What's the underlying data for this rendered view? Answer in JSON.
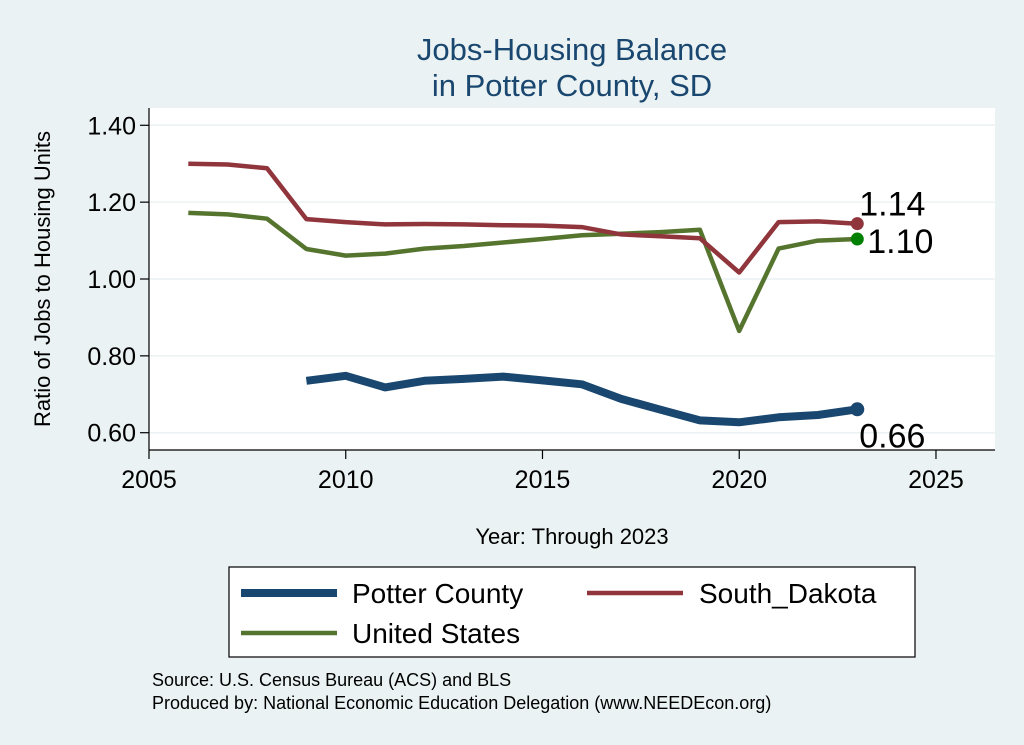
{
  "chart_data": {
    "type": "line",
    "title": [
      "Jobs-Housing Balance",
      "in Potter County, SD"
    ],
    "xlabel": "Year: Through 2023",
    "ylabel": "Ratio of Jobs to Housing Units",
    "xlim": [
      2005,
      2026.5
    ],
    "ylim": [
      0.555,
      1.445
    ],
    "xticks": [
      "2005",
      "2010",
      "2015",
      "2020",
      "2025"
    ],
    "yticks": [
      "0.60",
      "0.80",
      "1.00",
      "1.20",
      "1.40"
    ],
    "grid": true,
    "legend_position": "bottom",
    "series": [
      {
        "name": "Potter County",
        "color": "#1a476f",
        "end_label": "0.66",
        "points": [
          [
            2009,
            0.735
          ],
          [
            2010,
            0.748
          ],
          [
            2011,
            0.718
          ],
          [
            2012,
            0.735
          ],
          [
            2013,
            0.74
          ],
          [
            2014,
            0.746
          ],
          [
            2015,
            0.736
          ],
          [
            2016,
            0.726
          ],
          [
            2017,
            0.688
          ],
          [
            2018,
            0.66
          ],
          [
            2019,
            0.632
          ],
          [
            2020,
            0.627
          ],
          [
            2021,
            0.64
          ],
          [
            2022,
            0.646
          ],
          [
            2023,
            0.661
          ]
        ]
      },
      {
        "name": "South_Dakota",
        "color": "#90353b",
        "end_label": "1.14",
        "points": [
          [
            2006,
            1.3
          ],
          [
            2007,
            1.298
          ],
          [
            2008,
            1.288
          ],
          [
            2009,
            1.156
          ],
          [
            2010,
            1.148
          ],
          [
            2011,
            1.142
          ],
          [
            2012,
            1.143
          ],
          [
            2013,
            1.142
          ],
          [
            2014,
            1.14
          ],
          [
            2015,
            1.139
          ],
          [
            2016,
            1.135
          ],
          [
            2017,
            1.116
          ],
          [
            2018,
            1.111
          ],
          [
            2019,
            1.106
          ],
          [
            2020,
            1.017
          ],
          [
            2021,
            1.148
          ],
          [
            2022,
            1.15
          ],
          [
            2023,
            1.144
          ]
        ]
      },
      {
        "name": "United States",
        "color": "#55752f",
        "end_label": "1.10",
        "points": [
          [
            2006,
            1.172
          ],
          [
            2007,
            1.168
          ],
          [
            2008,
            1.157
          ],
          [
            2009,
            1.078
          ],
          [
            2010,
            1.061
          ],
          [
            2011,
            1.066
          ],
          [
            2012,
            1.079
          ],
          [
            2013,
            1.086
          ],
          [
            2014,
            1.095
          ],
          [
            2015,
            1.104
          ],
          [
            2016,
            1.114
          ],
          [
            2017,
            1.118
          ],
          [
            2018,
            1.122
          ],
          [
            2019,
            1.128
          ],
          [
            2020,
            0.865
          ],
          [
            2021,
            1.079
          ],
          [
            2022,
            1.1
          ],
          [
            2023,
            1.104
          ]
        ]
      }
    ],
    "notes": [
      "Source: U.S. Census Bureau (ACS) and BLS",
      "Produced by: National Economic Education Delegation (www.NEEDEcon.org)"
    ]
  }
}
